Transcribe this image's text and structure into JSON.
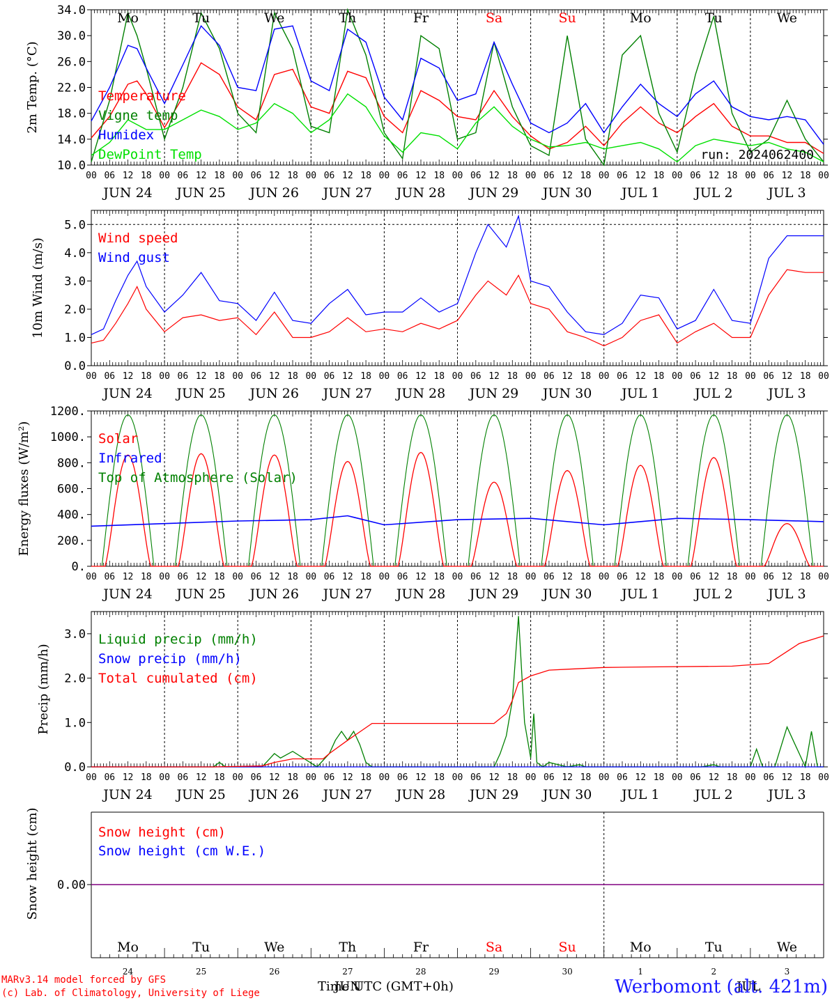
{
  "day_names": [
    "Mo",
    "Tu",
    "We",
    "Th",
    "Fr",
    "Sa",
    "Su",
    "Mo",
    "Tu",
    "We"
  ],
  "day_name_colors": [
    "#000000",
    "#000000",
    "#000000",
    "#000000",
    "#000000",
    "#ff0000",
    "#ff0000",
    "#000000",
    "#000000",
    "#000000"
  ],
  "date_labels": [
    "JUN 24",
    "JUN 25",
    "JUN 26",
    "JUN 27",
    "JUN 28",
    "JUN 29",
    "JUN 30",
    "JUL  1",
    "JUL  2",
    "JUL  3"
  ],
  "day_numbers": [
    "24",
    "25",
    "26",
    "27",
    "28",
    "29",
    "30",
    "1",
    "2",
    "3"
  ],
  "hour_ticks": [
    "00",
    "06",
    "12",
    "18"
  ],
  "last_hour_tick": "00",
  "footer": {
    "credit_line1": "MARv3.14 model forced by GFS",
    "credit_line2": "(c) Lab. of Climatology, University of Liege",
    "x_title": "Time UTC (GMT+0h)",
    "month_jun": "JUN",
    "month_jul": "JUL",
    "station": "Werbomont (alt. 421m)"
  },
  "colors": {
    "red": "#ff0000",
    "green": "#008000",
    "blue": "#0000ff",
    "lightgreen": "#00e000",
    "purple": "#800080"
  },
  "chart_data": [
    {
      "type": "line",
      "ylabel": "2m Temp. (°C)",
      "ylim": [
        10.0,
        34.0
      ],
      "yticks": [
        "10.0",
        "14.0",
        "18.0",
        "22.0",
        "26.0",
        "30.0",
        "34.0"
      ],
      "annotation": "run: 2024062400",
      "x_unit": "hours since JUN 24 00 UTC",
      "series": [
        {
          "name": "Temperature",
          "color": "#ff0000",
          "x": [
            0,
            6,
            12,
            15,
            18,
            24,
            30,
            36,
            42,
            48,
            54,
            60,
            66,
            72,
            78,
            84,
            90,
            96,
            102,
            108,
            114,
            120,
            126,
            132,
            138,
            144,
            150,
            156,
            162,
            168,
            174,
            180,
            186,
            192,
            198,
            204,
            210,
            216,
            222,
            228,
            234,
            240
          ],
          "y": [
            14.2,
            17.5,
            22.5,
            23.0,
            21.0,
            15.8,
            20.5,
            25.8,
            24.0,
            19.0,
            17.0,
            24.0,
            24.8,
            19.0,
            18.0,
            24.5,
            23.5,
            17.5,
            15.0,
            21.5,
            20.0,
            17.5,
            17.0,
            21.5,
            17.5,
            14.5,
            12.5,
            13.5,
            16.0,
            13.0,
            16.5,
            19.0,
            16.5,
            15.0,
            17.5,
            19.5,
            16.0,
            14.5,
            14.5,
            13.5,
            13.5,
            11.8
          ]
        },
        {
          "name": "Vigne temp",
          "color": "#008000",
          "x": [
            0,
            6,
            12,
            15,
            18,
            24,
            30,
            36,
            42,
            48,
            54,
            60,
            66,
            72,
            78,
            84,
            90,
            96,
            102,
            108,
            114,
            120,
            126,
            132,
            138,
            144,
            150,
            156,
            162,
            168,
            174,
            180,
            186,
            192,
            198,
            204,
            210,
            216,
            222,
            228,
            234,
            240
          ],
          "y": [
            10.5,
            20.0,
            33.5,
            30.0,
            25.0,
            14.0,
            22.0,
            33.5,
            28.0,
            18.0,
            15.0,
            33.5,
            28.0,
            16.0,
            15.0,
            34.0,
            27.0,
            15.0,
            11.0,
            30.0,
            28.0,
            14.0,
            15.0,
            29.0,
            19.0,
            13.0,
            11.5,
            30.0,
            14.0,
            10.0,
            27.0,
            30.0,
            18.0,
            12.0,
            24.0,
            33.0,
            18.0,
            12.0,
            14.0,
            20.0,
            14.0,
            10.5
          ]
        },
        {
          "name": "Humidex",
          "color": "#0000ff",
          "x": [
            0,
            6,
            12,
            15,
            18,
            24,
            30,
            36,
            42,
            48,
            54,
            60,
            66,
            72,
            78,
            84,
            90,
            96,
            102,
            108,
            114,
            120,
            126,
            132,
            138,
            144,
            150,
            156,
            162,
            168,
            174,
            180,
            186,
            192,
            198,
            204,
            210,
            216,
            222,
            228,
            234,
            240
          ],
          "y": [
            16.8,
            22.0,
            28.5,
            28.0,
            25.0,
            19.5,
            25.5,
            31.5,
            28.5,
            22.0,
            21.5,
            31.0,
            31.5,
            23.0,
            21.5,
            31.0,
            29.0,
            20.5,
            17.0,
            26.5,
            25.0,
            20.0,
            21.0,
            29.0,
            22.5,
            16.5,
            15.0,
            16.5,
            19.5,
            15.0,
            19.0,
            22.5,
            19.5,
            17.5,
            21.0,
            23.0,
            19.0,
            17.5,
            17.0,
            17.5,
            17.0,
            13.2
          ]
        },
        {
          "name": "DewPoint Temp",
          "color": "#00e000",
          "x": [
            0,
            6,
            12,
            18,
            24,
            30,
            36,
            42,
            48,
            54,
            60,
            66,
            72,
            78,
            84,
            90,
            96,
            102,
            108,
            114,
            120,
            126,
            132,
            138,
            144,
            150,
            156,
            162,
            168,
            174,
            180,
            186,
            192,
            198,
            204,
            210,
            216,
            222,
            228,
            234,
            240
          ],
          "y": [
            11.5,
            13.5,
            17.0,
            15.5,
            15.5,
            17.0,
            18.5,
            17.5,
            15.5,
            16.5,
            19.5,
            18.0,
            15.0,
            17.0,
            21.0,
            19.0,
            14.5,
            12.0,
            15.0,
            14.5,
            12.5,
            16.5,
            19.0,
            16.0,
            14.0,
            12.8,
            13.0,
            13.5,
            12.5,
            13.0,
            13.5,
            12.5,
            10.5,
            13.0,
            14.0,
            13.5,
            13.0,
            13.5,
            12.5,
            12.0,
            10.5
          ]
        }
      ]
    },
    {
      "type": "line",
      "ylabel": "10m Wind (m/s)",
      "ylim": [
        0.0,
        5.5
      ],
      "yticks": [
        "0.0",
        "1.0",
        "2.0",
        "3.0",
        "4.0",
        "5.0"
      ],
      "x_unit": "hours since JUN 24 00 UTC",
      "series": [
        {
          "name": "Wind speed",
          "color": "#ff0000",
          "x": [
            0,
            4,
            8,
            12,
            15,
            18,
            24,
            30,
            36,
            42,
            48,
            54,
            60,
            66,
            72,
            78,
            84,
            90,
            96,
            102,
            108,
            114,
            120,
            126,
            130,
            136,
            140,
            144,
            150,
            156,
            162,
            168,
            174,
            180,
            186,
            192,
            198,
            204,
            210,
            216,
            222,
            228,
            234,
            240
          ],
          "y": [
            0.8,
            0.9,
            1.5,
            2.2,
            2.8,
            2.0,
            1.2,
            1.7,
            1.8,
            1.6,
            1.7,
            1.1,
            1.9,
            1.0,
            1.0,
            1.2,
            1.7,
            1.2,
            1.3,
            1.2,
            1.5,
            1.3,
            1.6,
            2.5,
            3.0,
            2.5,
            3.2,
            2.2,
            2.0,
            1.2,
            1.0,
            0.7,
            1.0,
            1.6,
            1.8,
            0.8,
            1.2,
            1.5,
            1.0,
            1.0,
            2.5,
            3.4,
            3.3,
            3.3
          ]
        },
        {
          "name": "Wind gust",
          "color": "#0000ff",
          "x": [
            0,
            4,
            8,
            12,
            15,
            18,
            24,
            30,
            36,
            42,
            48,
            54,
            60,
            66,
            72,
            78,
            84,
            90,
            96,
            102,
            108,
            114,
            120,
            126,
            130,
            136,
            140,
            144,
            150,
            156,
            162,
            168,
            174,
            180,
            186,
            192,
            198,
            204,
            210,
            216,
            222,
            228,
            234,
            240
          ],
          "y": [
            1.1,
            1.3,
            2.3,
            3.2,
            3.7,
            2.8,
            1.9,
            2.5,
            3.3,
            2.3,
            2.2,
            1.6,
            2.6,
            1.6,
            1.5,
            2.2,
            2.7,
            1.8,
            1.9,
            1.9,
            2.4,
            1.9,
            2.2,
            4.0,
            5.0,
            4.2,
            5.3,
            3.0,
            2.8,
            1.9,
            1.2,
            1.1,
            1.5,
            2.5,
            2.4,
            1.3,
            1.6,
            2.7,
            1.6,
            1.5,
            3.8,
            4.6,
            4.6,
            4.6
          ]
        }
      ],
      "reference_line": 5.0
    },
    {
      "type": "line",
      "ylabel": "Energy fluxes (W/m²)",
      "ylim": [
        0,
        1200
      ],
      "yticks": [
        "0.",
        "200.",
        "400.",
        "600.",
        "800.",
        "1000.",
        "1200."
      ],
      "x_unit": "hours since JUN 24 00 UTC",
      "series": [
        {
          "name": "Solar",
          "color": "#ff0000",
          "daily_peaks": [
            860,
            870,
            860,
            810,
            880,
            650,
            740,
            780,
            840,
            330
          ]
        },
        {
          "name": "Infrared",
          "color": "#0000ff",
          "x": [
            0,
            24,
            48,
            72,
            84,
            96,
            120,
            144,
            168,
            192,
            216,
            240
          ],
          "y": [
            310,
            330,
            350,
            360,
            390,
            320,
            360,
            370,
            320,
            370,
            360,
            345
          ]
        },
        {
          "name": "Top of Atmosphere (Solar)",
          "color": "#008000",
          "peak": 1170
        }
      ]
    },
    {
      "type": "line",
      "ylabel": "Precip (mm/h)",
      "ylim": [
        0.0,
        3.5
      ],
      "yticks": [
        "0.0",
        "1.0",
        "2.0",
        "3.0"
      ],
      "x_unit": "hours since JUN 24 00 UTC",
      "series": [
        {
          "name": "Liquid precip (mm/h)",
          "color": "#008000",
          "x": [
            0,
            40,
            42,
            44,
            56,
            60,
            62,
            66,
            74,
            78,
            80,
            82,
            84,
            86,
            88,
            90,
            92,
            132,
            134,
            136,
            138,
            140,
            142,
            144,
            145,
            146,
            148,
            150,
            156,
            160,
            162,
            200,
            204,
            206,
            210,
            216,
            218,
            220,
            224,
            228,
            230,
            232,
            234,
            236,
            238,
            240
          ],
          "y": [
            0,
            0,
            0.1,
            0,
            0,
            0.3,
            0.2,
            0.35,
            0,
            0.3,
            0.6,
            0.8,
            0.6,
            0.8,
            0.5,
            0.1,
            0,
            0,
            0.3,
            0.7,
            1.5,
            3.4,
            1.0,
            0.2,
            1.2,
            0.1,
            0,
            0.1,
            0,
            0.05,
            0,
            0,
            0.05,
            0,
            0,
            0,
            0.4,
            0,
            0,
            0.9,
            0.6,
            0.3,
            0,
            0.8,
            0,
            0
          ]
        },
        {
          "name": "Snow precip (mm/h)",
          "color": "#0000ff",
          "x": [
            0,
            240
          ],
          "y": [
            0,
            0
          ]
        },
        {
          "name": "Total cumulated (cm)",
          "color": "#ff0000",
          "x": [
            0,
            40,
            56,
            60,
            66,
            76,
            78,
            84,
            92,
            96,
            132,
            136,
            138,
            140,
            144,
            150,
            156,
            168,
            180,
            210,
            222,
            228,
            232,
            240
          ],
          "y": [
            0,
            0,
            0.02,
            0.1,
            0.18,
            0.18,
            0.3,
            0.6,
            0.98,
            0.98,
            0.98,
            1.2,
            1.5,
            1.9,
            2.05,
            2.18,
            2.2,
            2.24,
            2.25,
            2.27,
            2.33,
            2.6,
            2.78,
            2.95
          ]
        }
      ]
    },
    {
      "type": "line",
      "ylabel": "Snow height (cm)",
      "yticks": [
        "0.00"
      ],
      "x_unit": "hours since JUN 24 00 UTC",
      "series": [
        {
          "name": "Snow height (cm)",
          "color": "#ff0000",
          "x": [
            0,
            240
          ],
          "y": [
            0,
            0
          ]
        },
        {
          "name": "Snow height (cm W.E.)",
          "color": "#0000ff",
          "x": [
            0,
            240
          ],
          "y": [
            0,
            0
          ]
        }
      ]
    }
  ]
}
